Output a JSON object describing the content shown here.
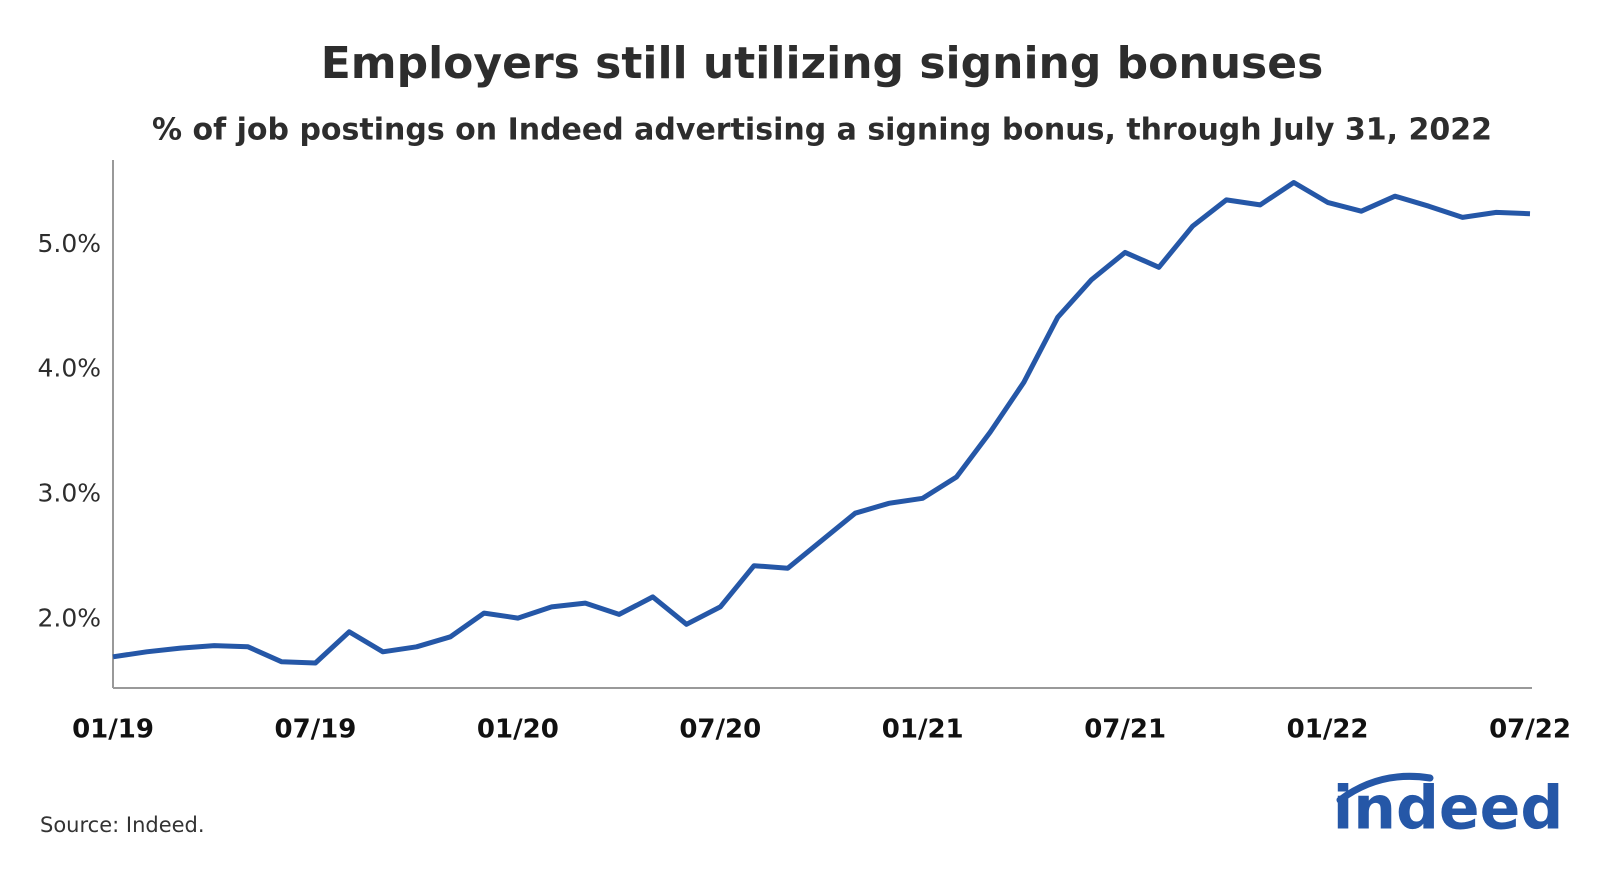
{
  "chart_data": {
    "type": "line",
    "title": "Employers still utilizing signing bonuses",
    "subtitle": "% of job postings on Indeed advertising a signing bonus, through July 31, 2022",
    "source": "Source: Indeed.",
    "logo": "indeed",
    "categories": [
      "01/19",
      null,
      null,
      null,
      null,
      null,
      "07/19",
      null,
      null,
      null,
      null,
      null,
      "01/20",
      null,
      null,
      null,
      null,
      null,
      "07/20",
      null,
      null,
      null,
      null,
      null,
      "01/21",
      null,
      null,
      null,
      null,
      null,
      "07/21",
      null,
      null,
      null,
      null,
      null,
      "01/22",
      null,
      null,
      null,
      null,
      null,
      "07/22"
    ],
    "values": [
      1.7,
      1.74,
      1.77,
      1.79,
      1.78,
      1.66,
      1.65,
      1.9,
      1.74,
      1.78,
      1.86,
      2.05,
      2.01,
      2.1,
      2.13,
      2.04,
      2.18,
      1.96,
      2.1,
      2.43,
      2.41,
      2.63,
      2.85,
      2.93,
      2.97,
      3.14,
      3.5,
      3.9,
      4.42,
      4.72,
      4.94,
      4.82,
      5.15,
      5.36,
      5.32,
      5.5,
      5.34,
      5.27,
      5.39,
      5.31,
      5.22,
      5.26,
      5.25
    ],
    "color": "#2557a7",
    "ylim": [
      1.45,
      5.68
    ],
    "yticks": [
      {
        "value": 2,
        "label": "2.0%"
      },
      {
        "value": 3,
        "label": "3.0%"
      },
      {
        "value": 4,
        "label": "4.0%"
      },
      {
        "value": 5,
        "label": "5.0%"
      }
    ],
    "grid": false
  }
}
